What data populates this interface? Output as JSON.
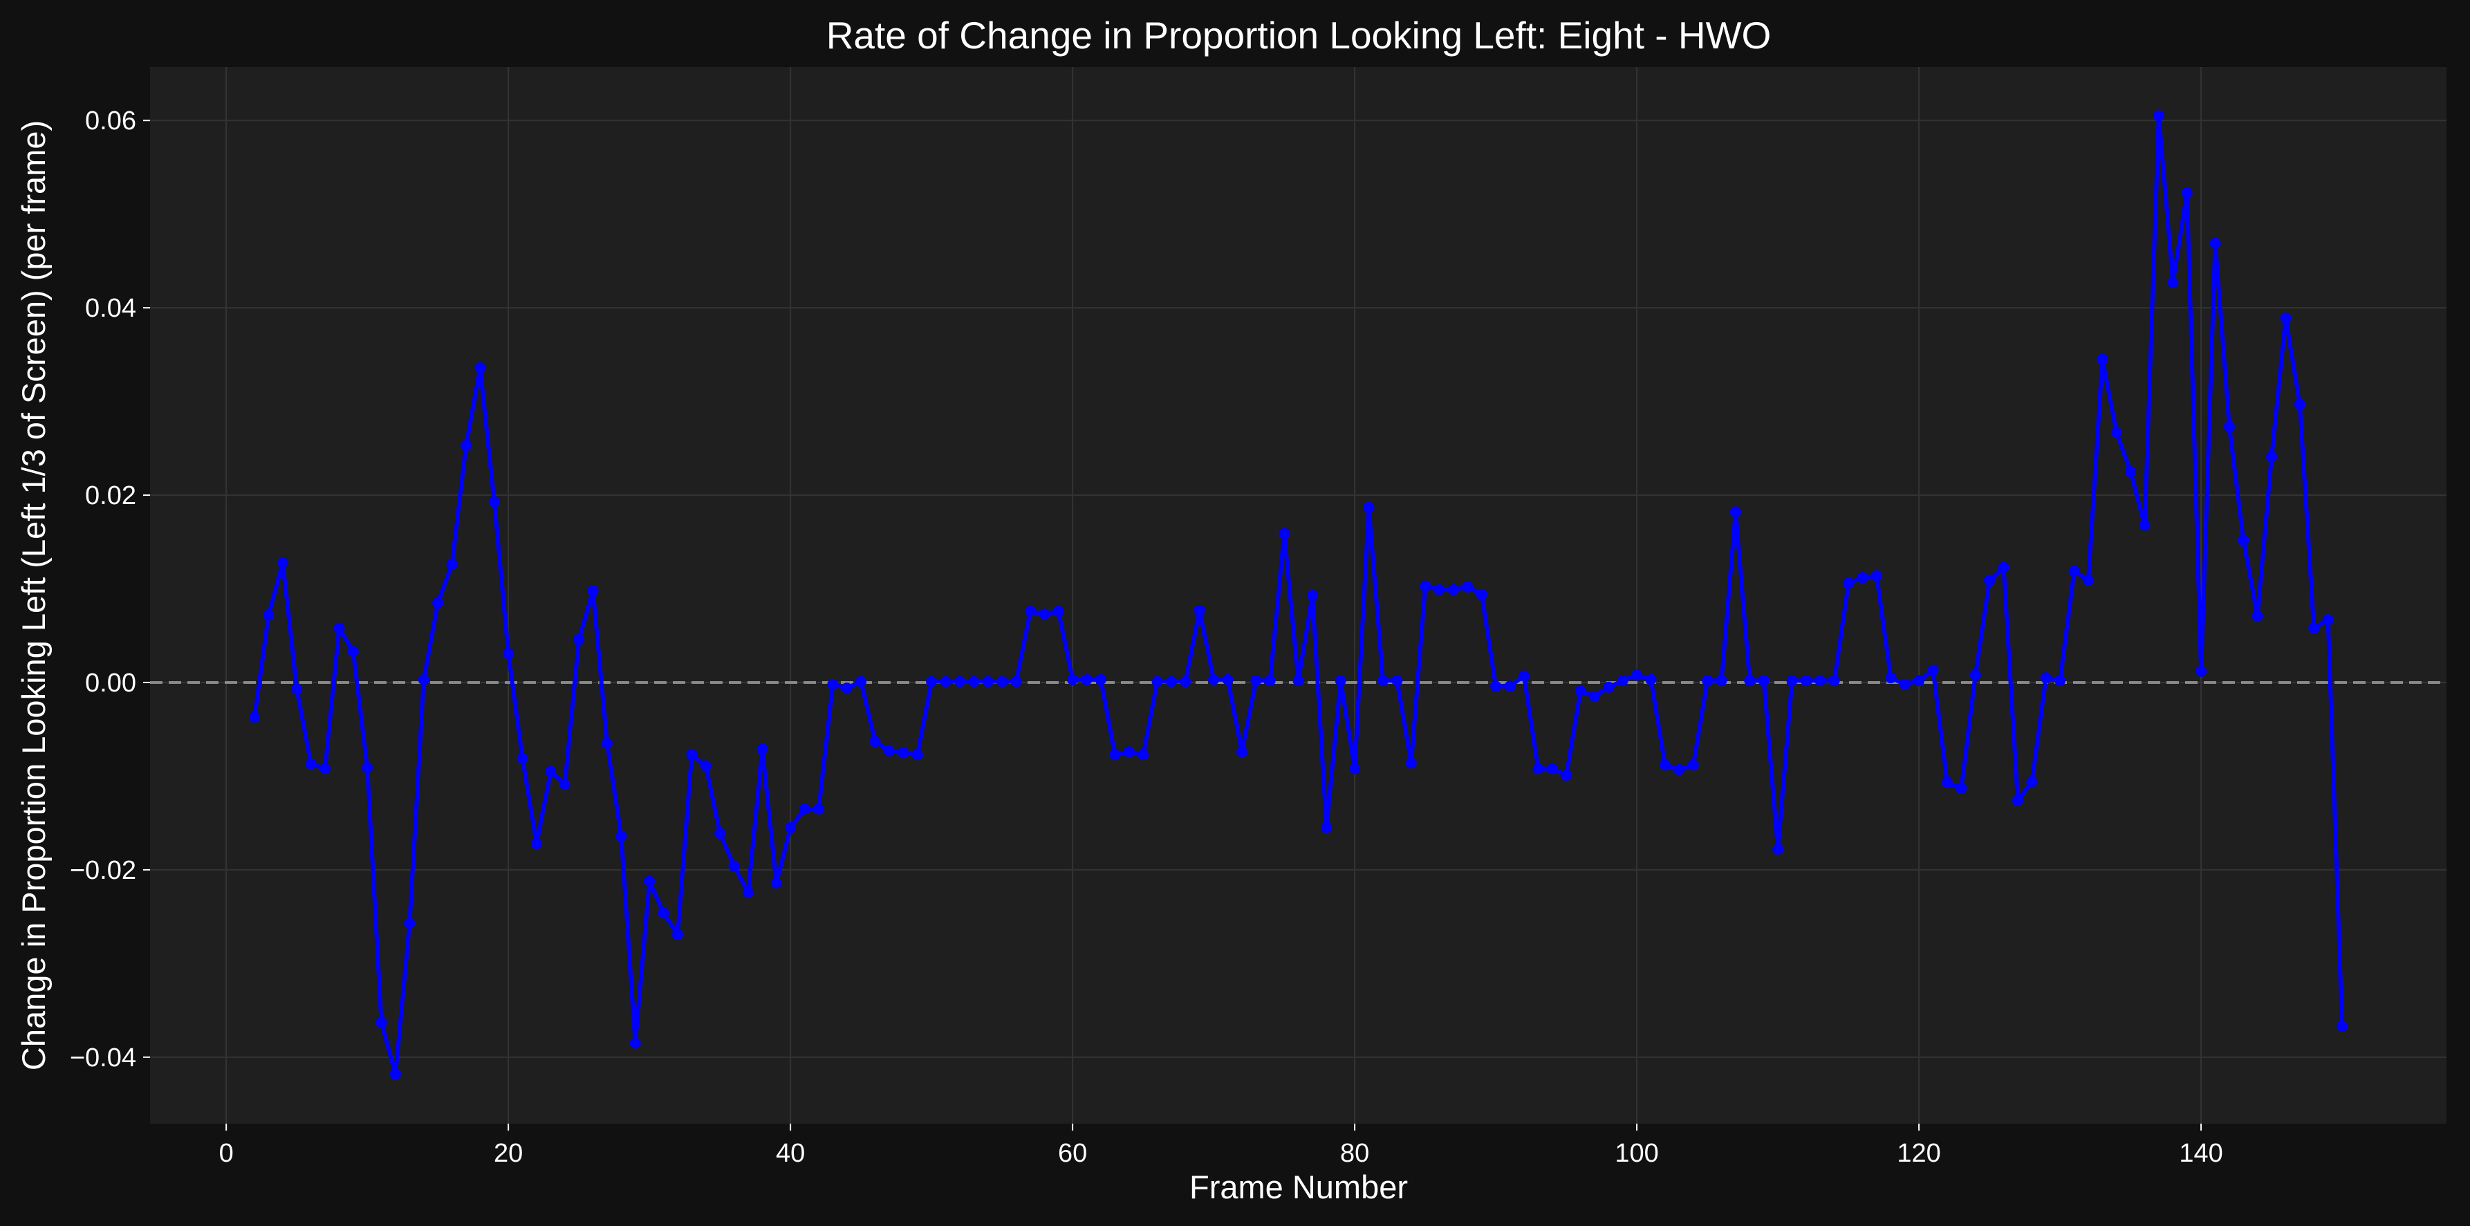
{
  "chart_data": {
    "type": "line",
    "title": "Rate of Change in Proportion Looking Left: Eight - HWO",
    "xlabel": "Frame Number",
    "ylabel": "Change in Proportion Looking Left (Left 1/3 of Screen) (per frame)",
    "xlim": [
      -5.4,
      157.4
    ],
    "ylim": [
      -0.0471,
      0.0657
    ],
    "x_ticks": [
      0,
      20,
      40,
      60,
      80,
      100,
      120,
      140
    ],
    "y_ticks": [
      -0.04,
      -0.02,
      0.0,
      0.02,
      0.04,
      0.06
    ],
    "x_tick_labels": [
      "0",
      "20",
      "40",
      "60",
      "80",
      "100",
      "120",
      "140"
    ],
    "y_tick_labels": [
      "−0.04",
      "−0.02",
      "0.00",
      "0.02",
      "0.04",
      "0.06"
    ],
    "grid": true,
    "reference_line": {
      "y": 0.0,
      "style": "dashed",
      "color": "#888888"
    },
    "colors": {
      "figure_background": "#111111",
      "plot_background": "#1f1f1f",
      "grid": "#333333",
      "series": "#0000ff",
      "text": "#ffffff"
    },
    "series": [
      {
        "color": "#0000ff",
        "marker": "circle",
        "x": [
          2,
          3,
          4,
          5,
          6,
          7,
          8,
          9,
          10,
          11,
          12,
          13,
          14,
          15,
          16,
          17,
          18,
          19,
          20,
          21,
          22,
          23,
          24,
          25,
          26,
          27,
          28,
          29,
          30,
          31,
          32,
          33,
          34,
          35,
          36,
          37,
          38,
          39,
          40,
          41,
          42,
          43,
          44,
          45,
          46,
          47,
          48,
          49,
          50,
          51,
          52,
          53,
          54,
          55,
          56,
          57,
          58,
          59,
          60,
          61,
          62,
          63,
          64,
          65,
          66,
          67,
          68,
          69,
          70,
          71,
          72,
          73,
          74,
          75,
          76,
          77,
          78,
          79,
          80,
          81,
          82,
          83,
          84,
          85,
          86,
          87,
          88,
          89,
          90,
          91,
          92,
          93,
          94,
          95,
          96,
          97,
          98,
          99,
          100,
          101,
          102,
          103,
          104,
          105,
          106,
          107,
          108,
          109,
          110,
          111,
          112,
          113,
          114,
          115,
          116,
          117,
          118,
          119,
          120,
          121,
          122,
          123,
          124,
          125,
          126,
          127,
          128,
          129,
          130,
          131,
          132,
          133,
          134,
          135,
          136,
          137,
          138,
          139,
          140,
          141,
          142,
          143,
          144,
          145,
          146,
          147,
          148,
          149,
          150
        ],
        "y": [
          -0.0037,
          0.0072,
          0.0128,
          -0.0007,
          -0.0087,
          -0.0092,
          0.0058,
          0.0033,
          -0.0091,
          -0.0363,
          -0.0418,
          -0.0257,
          0.0003,
          0.0085,
          0.0126,
          0.0253,
          0.0336,
          0.0193,
          0.0031,
          -0.0081,
          -0.0172,
          -0.0095,
          -0.0109,
          0.0046,
          0.0098,
          -0.0065,
          -0.0164,
          -0.0385,
          -0.0212,
          -0.0246,
          -0.0269,
          -0.0077,
          -0.0089,
          -0.0161,
          -0.0196,
          -0.0224,
          -0.0071,
          -0.0214,
          -0.0155,
          -0.0135,
          -0.0135,
          -0.0002,
          -0.0006,
          0.0001,
          -0.0063,
          -0.0073,
          -0.0075,
          -0.0077,
          0.0001,
          0.0001,
          0.0001,
          0.0001,
          0.0001,
          0.0001,
          0.0001,
          0.0076,
          0.0073,
          0.0076,
          0.0003,
          0.0003,
          0.0003,
          -0.0077,
          -0.0074,
          -0.0077,
          0.0001,
          0.0001,
          0.0001,
          0.0077,
          0.0003,
          0.0003,
          -0.0074,
          0.0002,
          0.0002,
          0.0159,
          0.0002,
          0.0093,
          -0.0155,
          0.0002,
          -0.0092,
          0.0187,
          0.0002,
          0.0002,
          -0.0086,
          0.0103,
          0.0099,
          0.0099,
          0.0102,
          0.0094,
          -0.0004,
          -0.0004,
          0.0007,
          -0.0092,
          -0.0092,
          -0.0099,
          -0.0009,
          -0.0015,
          -0.0005,
          0.0002,
          0.0008,
          0.0003,
          -0.0088,
          -0.0093,
          -0.0088,
          0.0002,
          0.0002,
          0.0182,
          0.0002,
          0.0002,
          -0.0178,
          0.0002,
          0.0002,
          0.0002,
          0.0002,
          0.0106,
          0.0112,
          0.0114,
          0.0005,
          -0.0002,
          0.0002,
          0.0013,
          -0.0107,
          -0.0113,
          0.0008,
          0.0109,
          0.0123,
          -0.0126,
          -0.0106,
          0.0005,
          0.0002,
          0.0119,
          0.0109,
          0.0345,
          0.0267,
          0.0225,
          0.0168,
          0.0605,
          0.0427,
          0.0523,
          0.0012,
          0.0469,
          0.0273,
          0.0152,
          0.0071,
          0.0241,
          0.0389,
          0.0297,
          0.0058,
          0.0067,
          -0.0367
        ]
      }
    ]
  }
}
